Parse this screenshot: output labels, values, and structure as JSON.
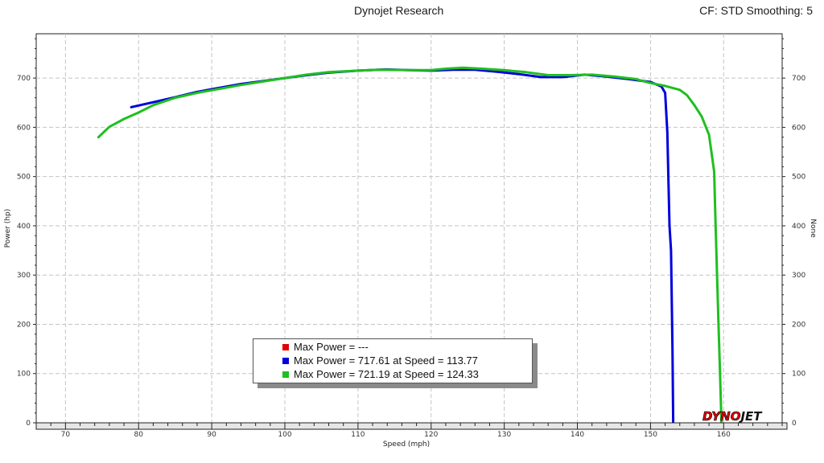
{
  "header": {
    "title": "Dynojet Research",
    "cf_text": "CF: STD Smoothing: 5"
  },
  "brand": {
    "logo_a": "DYNO",
    "logo_b": "JET"
  },
  "colors": {
    "red": "#e00000",
    "blue": "#0000dd",
    "green": "#1fbf1f"
  },
  "legend": [
    {
      "text": "Max Power = ---",
      "color": "#e00000"
    },
    {
      "text": "Max Power = 717.61 at Speed = 113.77",
      "color": "#0000dd"
    },
    {
      "text": "Max Power = 721.19 at Speed = 124.33",
      "color": "#1fbf1f"
    }
  ],
  "chart_data": {
    "type": "line",
    "xlabel": "Speed (mph)",
    "ylabel": "Power (hp)",
    "y2label": "None",
    "xlim": [
      66,
      168
    ],
    "ylim": [
      0,
      790
    ],
    "xticks": [
      70,
      80,
      90,
      100,
      110,
      120,
      130,
      140,
      150,
      160
    ],
    "yticks": [
      0,
      100,
      200,
      300,
      400,
      500,
      600,
      700
    ],
    "grid": true,
    "legend_position": "bottom-center",
    "series": [
      {
        "color": "#0000dd",
        "points": [
          [
            79,
            641
          ],
          [
            82,
            651
          ],
          [
            85,
            661
          ],
          [
            88,
            672
          ],
          [
            91,
            680
          ],
          [
            94,
            688
          ],
          [
            97,
            694
          ],
          [
            100,
            700
          ],
          [
            103,
            706
          ],
          [
            106,
            711
          ],
          [
            110,
            715
          ],
          [
            113.77,
            717.61
          ],
          [
            117,
            716
          ],
          [
            120,
            715
          ],
          [
            123,
            717
          ],
          [
            126,
            717
          ],
          [
            129,
            713
          ],
          [
            132,
            708
          ],
          [
            135,
            702
          ],
          [
            138,
            702
          ],
          [
            141,
            707
          ],
          [
            144,
            703
          ],
          [
            147,
            698
          ],
          [
            150,
            692
          ],
          [
            151.5,
            683
          ],
          [
            152,
            670
          ],
          [
            152.3,
            590
          ],
          [
            152.6,
            400
          ],
          [
            152.8,
            350
          ],
          [
            153,
            150
          ],
          [
            153.1,
            0
          ]
        ]
      },
      {
        "color": "#1fbf1f",
        "points": [
          [
            74.5,
            580
          ],
          [
            76,
            601
          ],
          [
            78,
            617
          ],
          [
            80,
            630
          ],
          [
            82,
            645
          ],
          [
            85,
            660
          ],
          [
            88,
            670
          ],
          [
            91,
            678
          ],
          [
            94,
            686
          ],
          [
            97,
            693
          ],
          [
            100,
            700
          ],
          [
            103,
            707
          ],
          [
            106,
            712
          ],
          [
            110,
            715
          ],
          [
            113,
            717
          ],
          [
            117,
            716
          ],
          [
            120,
            716
          ],
          [
            122,
            719
          ],
          [
            124.33,
            721.19
          ],
          [
            127,
            719
          ],
          [
            130,
            716
          ],
          [
            133,
            712
          ],
          [
            136,
            706
          ],
          [
            139,
            706
          ],
          [
            142,
            707
          ],
          [
            145,
            703
          ],
          [
            148,
            698
          ],
          [
            150,
            690
          ],
          [
            152,
            684
          ],
          [
            154,
            676
          ],
          [
            155,
            665
          ],
          [
            156,
            645
          ],
          [
            157,
            622
          ],
          [
            158,
            585
          ],
          [
            158.7,
            510
          ],
          [
            158.9,
            400
          ],
          [
            159.1,
            300
          ],
          [
            159.3,
            200
          ],
          [
            159.5,
            100
          ],
          [
            159.7,
            0
          ]
        ]
      }
    ]
  }
}
